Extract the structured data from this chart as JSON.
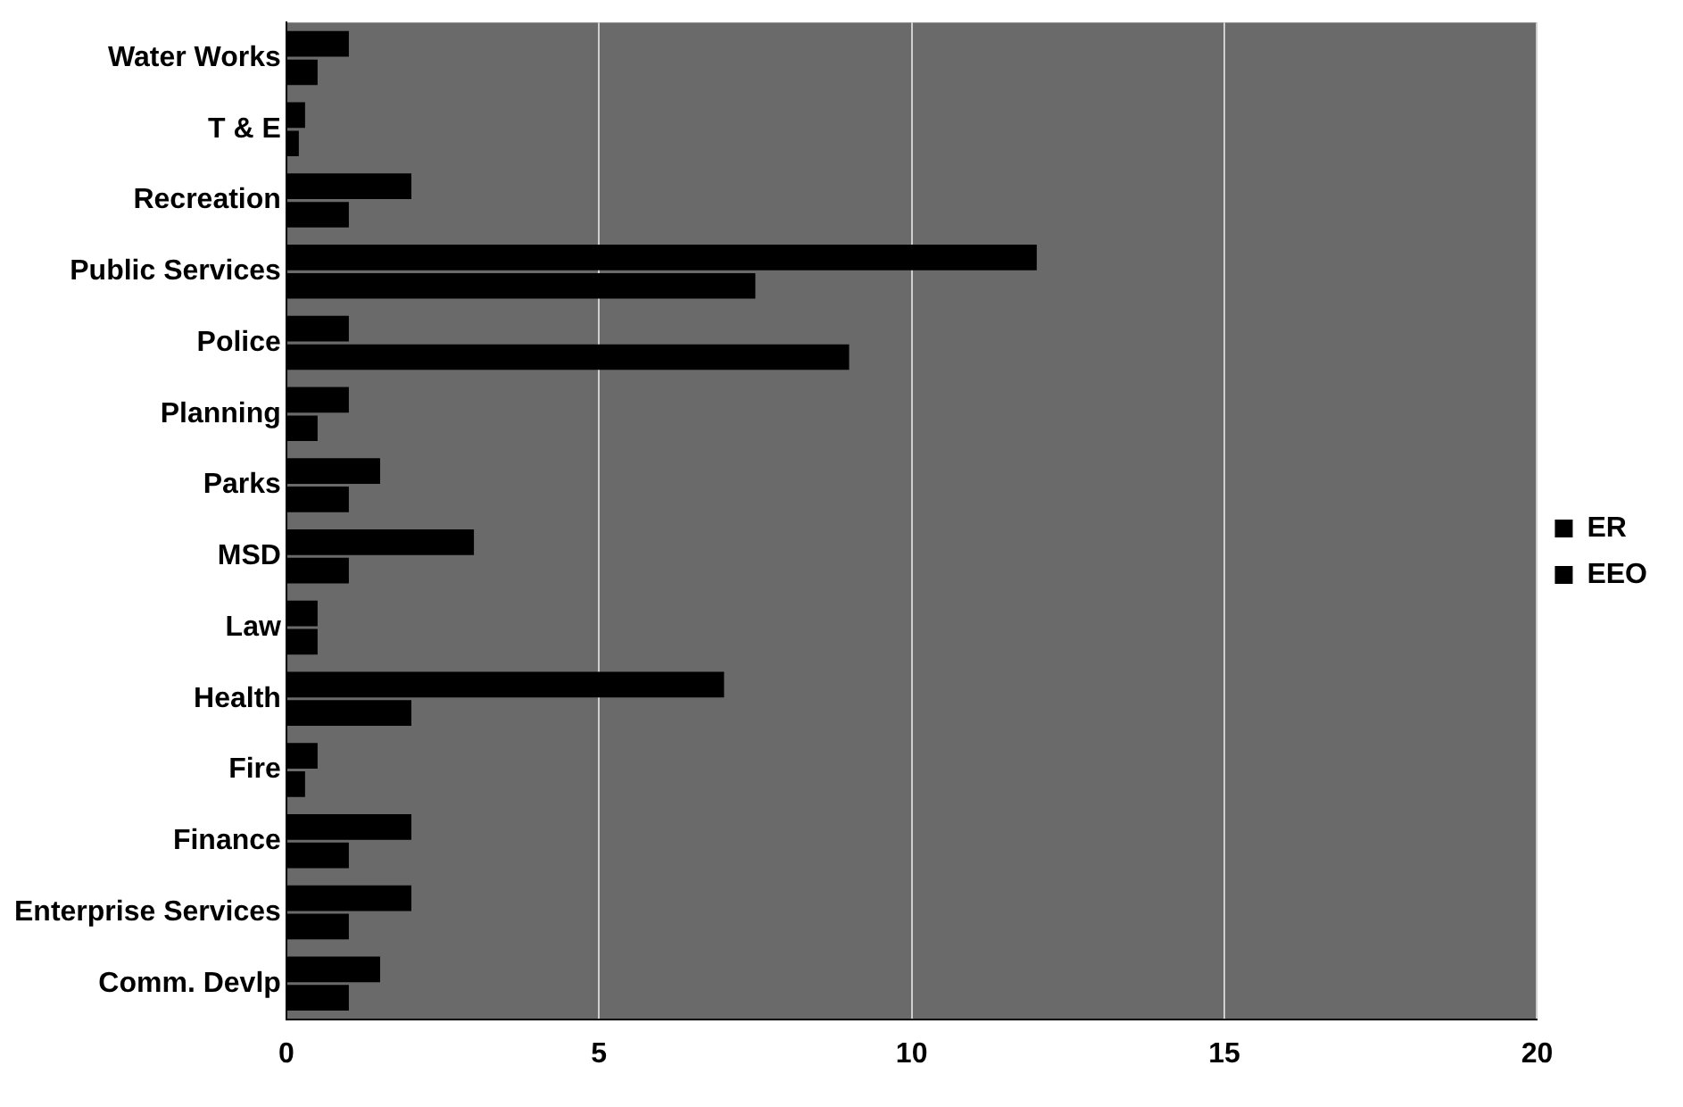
{
  "chart_data": {
    "type": "bar",
    "orientation": "horizontal",
    "categories": [
      "Water Works",
      "T & E",
      "Recreation",
      "Public Services",
      "Police",
      "Planning",
      "Parks",
      "MSD",
      "Law",
      "Health",
      "Fire",
      "Finance",
      "Enterprise Services",
      "Comm. Devlp"
    ],
    "series": [
      {
        "name": "ER",
        "color": "#000000",
        "values": [
          1,
          0.3,
          2,
          12,
          1,
          1,
          1.5,
          3,
          0.5,
          7,
          0.5,
          2,
          2,
          1.5
        ]
      },
      {
        "name": "EEO",
        "color": "#000000",
        "values": [
          0.5,
          0.2,
          1,
          7.5,
          9,
          0.5,
          1,
          1,
          0.5,
          2,
          0.3,
          1,
          1,
          1
        ]
      }
    ],
    "xlim": [
      0,
      20
    ],
    "xticks": [
      0,
      5,
      10,
      15,
      20
    ],
    "grid": "x",
    "legend": "right"
  }
}
